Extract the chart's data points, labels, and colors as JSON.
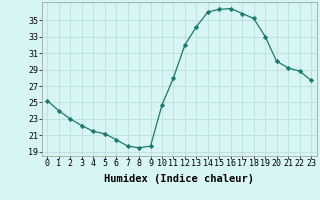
{
  "x": [
    0,
    1,
    2,
    3,
    4,
    5,
    6,
    7,
    8,
    9,
    10,
    11,
    12,
    13,
    14,
    15,
    16,
    17,
    18,
    19,
    20,
    21,
    22,
    23
  ],
  "y": [
    25.2,
    24.0,
    23.0,
    22.2,
    21.5,
    21.2,
    20.5,
    19.7,
    19.5,
    19.7,
    24.7,
    28.0,
    32.0,
    34.2,
    36.0,
    36.3,
    36.4,
    35.8,
    35.2,
    33.0,
    30.0,
    29.2,
    28.8,
    27.7
  ],
  "line_color": "#1a7a6e",
  "marker": "D",
  "marker_size": 2.2,
  "bg_color": "#d8f5f5",
  "grid_color": "#b8dada",
  "xlabel": "Humidex (Indice chaleur)",
  "xlabel_fontsize": 7.5,
  "yticks": [
    19,
    21,
    23,
    25,
    27,
    29,
    31,
    33,
    35
  ],
  "xticks": [
    0,
    1,
    2,
    3,
    4,
    5,
    6,
    7,
    8,
    9,
    10,
    11,
    12,
    13,
    14,
    15,
    16,
    17,
    18,
    19,
    20,
    21,
    22,
    23
  ],
  "ylim": [
    18.5,
    37.2
  ],
  "xlim": [
    -0.5,
    23.5
  ],
  "tick_fontsize": 6.0,
  "linewidth": 0.9
}
